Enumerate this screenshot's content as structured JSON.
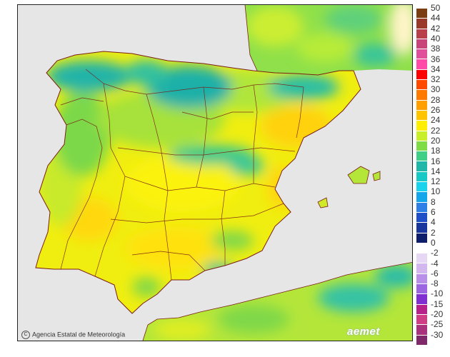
{
  "credit": "Agencia Estatal de Meteorología",
  "logo": "aemet",
  "legend": {
    "labels": [
      "50",
      "44",
      "42",
      "40",
      "38",
      "36",
      "34",
      "32",
      "30",
      "28",
      "26",
      "24",
      "22",
      "20",
      "18",
      "16",
      "14",
      "12",
      "10",
      "8",
      "6",
      "4",
      "2",
      "0",
      "-2",
      "-4",
      "-6",
      "-8",
      "-10",
      "-15",
      "-20",
      "-25",
      "-30"
    ],
    "colors": [
      "#7a3e12",
      "#9a3a2a",
      "#b8404a",
      "#c8457a",
      "#e0509a",
      "#ff4aa8",
      "#ff0000",
      "#ff4a00",
      "#ff7a00",
      "#ffa000",
      "#ffc400",
      "#ffee00",
      "#c8ef2a",
      "#7fdc46",
      "#3fcf86",
      "#1fb8a8",
      "#18c8c4",
      "#19d2ec",
      "#14a6ea",
      "#2e7fe6",
      "#2050c8",
      "#18369c",
      "#0e1e6a",
      "#ffffff",
      "#e6d8f4",
      "#d2b8ee",
      "#b890e8",
      "#9b66e0",
      "#8030d0",
      "#b6228a",
      "#cf3e84",
      "#a8327c",
      "#7e2a6a"
    ]
  }
}
